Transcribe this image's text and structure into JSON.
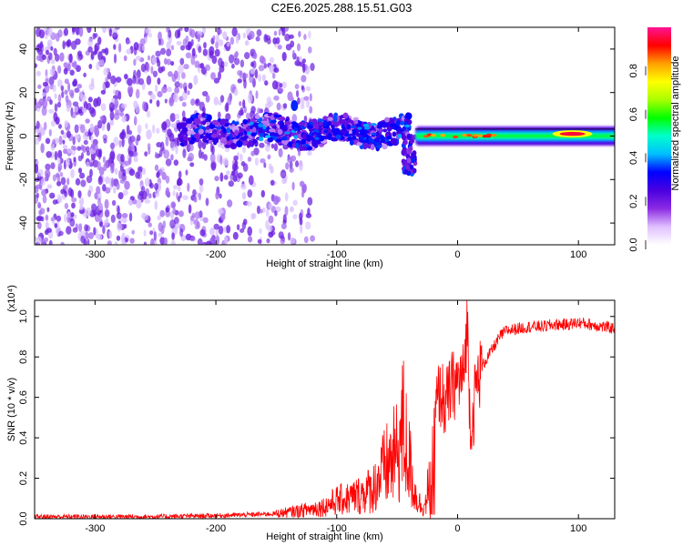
{
  "title": "C2E6.2025.288.15.51.G03",
  "chart_data": [
    {
      "type": "heatmap",
      "title": "C2E6.2025.288.15.51.G03",
      "xlabel": "Height of straight line (km)",
      "ylabel": "Frequency (Hz)",
      "xlim": [
        -350,
        130
      ],
      "ylim": [
        -50,
        50
      ],
      "x_ticks": [
        -300,
        -200,
        -100,
        0,
        100
      ],
      "y_ticks": [
        -40,
        -20,
        0,
        20,
        40
      ],
      "colorbar": {
        "label": "Normalized spectral amplitude",
        "range": [
          0,
          1
        ],
        "ticks": [
          "0.0",
          "0.2",
          "0.4",
          "0.6",
          "0.8"
        ],
        "tick_values": [
          0.0,
          0.2,
          0.4,
          0.6,
          0.8
        ],
        "colormap": [
          "#ffffff",
          "#e0c0ff",
          "#8a2be2",
          "#4a00e0",
          "#0000ff",
          "#00bfff",
          "#00ffcc",
          "#00ff00",
          "#aaff00",
          "#ffff00",
          "#ffa000",
          "#ff0000",
          "#ff1493"
        ]
      },
      "features": [
        {
          "name": "noise_region",
          "x_range": [
            -350,
            -130
          ],
          "y_range": [
            -50,
            50
          ],
          "amplitude": 0.1
        },
        {
          "name": "signal_band",
          "x_range": [
            -230,
            -40
          ],
          "y_center": 2,
          "y_halfwidth": 6,
          "amplitude": 0.25
        },
        {
          "name": "signal_peak",
          "x": -135,
          "y": 14,
          "amplitude": 0.35
        },
        {
          "name": "dip_tail",
          "x_range": [
            -45,
            -35
          ],
          "y_range": [
            -18,
            0
          ],
          "amplitude": 0.25
        },
        {
          "name": "steady_tone",
          "x_range": [
            -35,
            130
          ],
          "y_center": 0,
          "y_halfwidth": 2,
          "amplitude": 0.7
        },
        {
          "name": "strong_peak",
          "x": 95,
          "y": 1,
          "amplitude": 0.95
        }
      ]
    },
    {
      "type": "line",
      "xlabel": "Height of straight line (km)",
      "ylabel": "SNR (10 * v/v)",
      "y_multiplier": "(x10⁴)",
      "xlim": [
        -350,
        130
      ],
      "ylim": [
        0,
        1.08
      ],
      "x_ticks": [
        -300,
        -200,
        -100,
        0,
        100
      ],
      "y_ticks": [
        0.0,
        0.2,
        0.4,
        0.6,
        0.8,
        1.0
      ],
      "color": "#ff0000",
      "series": [
        {
          "name": "SNR",
          "x": [
            -350,
            -250,
            -200,
            -170,
            -150,
            -130,
            -110,
            -100,
            -90,
            -80,
            -70,
            -60,
            -50,
            -45,
            -40,
            -35,
            -30,
            -25,
            -22,
            -20,
            -18,
            -15,
            -12,
            -10,
            -8,
            -5,
            0,
            5,
            8,
            10,
            12,
            15,
            20,
            25,
            30,
            35,
            40,
            50,
            60,
            70,
            80,
            90,
            100,
            110,
            120,
            130
          ],
          "y": [
            0.01,
            0.01,
            0.015,
            0.02,
            0.025,
            0.04,
            0.06,
            0.09,
            0.1,
            0.12,
            0.15,
            0.25,
            0.32,
            0.45,
            0.28,
            0.12,
            0.06,
            0.08,
            0.15,
            0.35,
            0.55,
            0.62,
            0.6,
            0.55,
            0.6,
            0.65,
            0.68,
            0.7,
            0.98,
            0.55,
            0.45,
            0.65,
            0.75,
            0.8,
            0.85,
            0.9,
            0.93,
            0.94,
            0.95,
            0.95,
            0.96,
            0.96,
            0.97,
            0.96,
            0.95,
            0.94
          ]
        }
      ]
    }
  ]
}
